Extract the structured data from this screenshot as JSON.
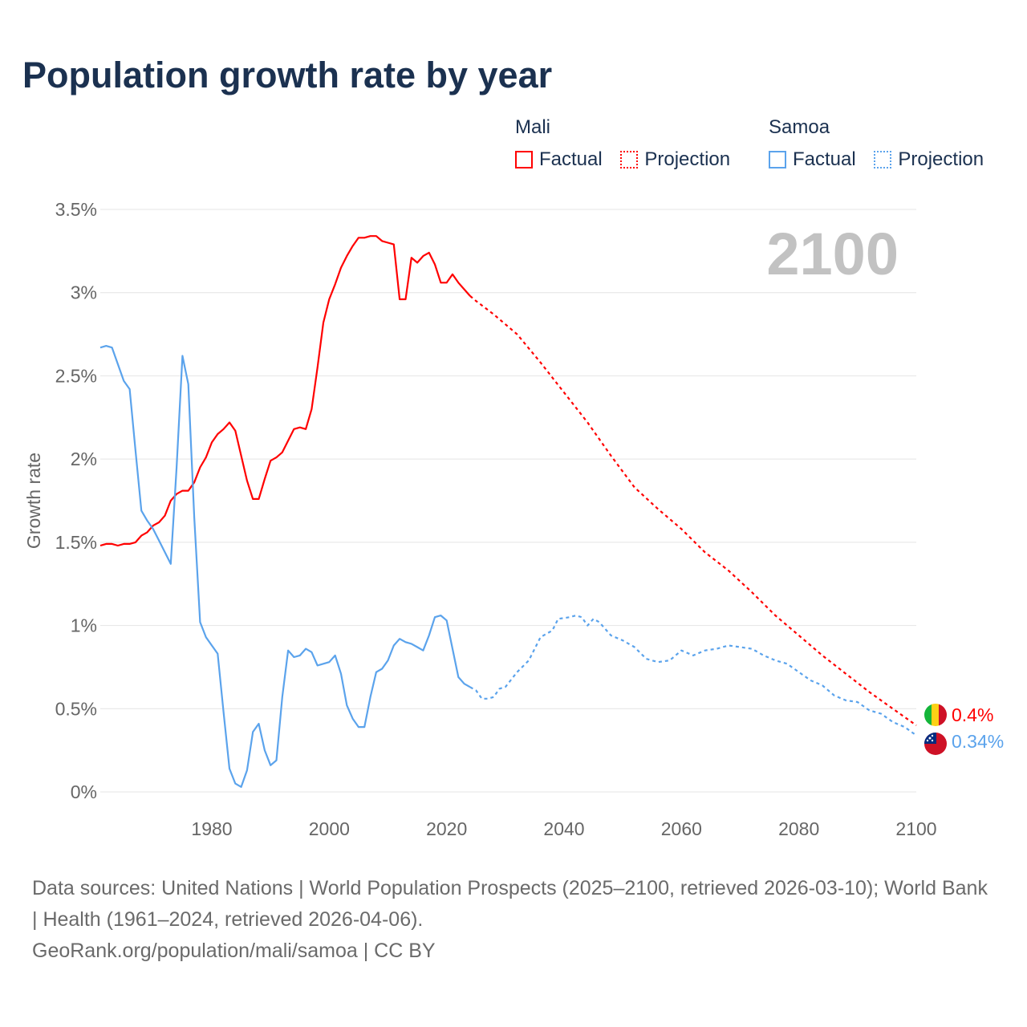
{
  "title": "Population growth rate by year",
  "legend": {
    "groups": [
      {
        "name": "Mali",
        "factual": "Factual",
        "projection": "Projection",
        "color": "#ff0000"
      },
      {
        "name": "Samoa",
        "factual": "Factual",
        "projection": "Projection",
        "color": "#5ba3ec"
      }
    ]
  },
  "year_watermark": "2100",
  "end_labels": {
    "mali": "0.4%",
    "samoa": "0.34%"
  },
  "footer": {
    "sources": "Data sources: United Nations | World Population Prospects (2025–2100, retrieved 2026-03-10); World Bank | Health (1961–2024, retrieved 2026-04-06).",
    "credit": "GeoRank.org/population/mali/samoa | CC BY"
  },
  "chart_data": {
    "type": "line",
    "title": "Population growth rate by year",
    "xlabel": "",
    "ylabel": "Growth rate",
    "xlim": [
      1961,
      2100
    ],
    "ylim": [
      0,
      3.5
    ],
    "xticks": [
      {
        "v": 1980,
        "label": "1980"
      },
      {
        "v": 2000,
        "label": "2000"
      },
      {
        "v": 2020,
        "label": "2020"
      },
      {
        "v": 2040,
        "label": "2040"
      },
      {
        "v": 2060,
        "label": "2060"
      },
      {
        "v": 2080,
        "label": "2080"
      },
      {
        "v": 2100,
        "label": "2100"
      }
    ],
    "yticks": [
      {
        "v": 0,
        "label": "0%"
      },
      {
        "v": 0.5,
        "label": "0.5%"
      },
      {
        "v": 1,
        "label": "1%"
      },
      {
        "v": 1.5,
        "label": "1.5%"
      },
      {
        "v": 2,
        "label": "2%"
      },
      {
        "v": 2.5,
        "label": "2.5%"
      },
      {
        "v": 3,
        "label": "3%"
      },
      {
        "v": 3.5,
        "label": "3.5%"
      }
    ],
    "grid": true,
    "series": [
      {
        "name": "Mali Factual",
        "country": "Mali",
        "kind": "factual",
        "color": "#ff0000",
        "x": [
          1961,
          1962,
          1963,
          1964,
          1965,
          1966,
          1967,
          1968,
          1969,
          1970,
          1971,
          1972,
          1973,
          1974,
          1975,
          1976,
          1977,
          1978,
          1979,
          1980,
          1981,
          1982,
          1983,
          1984,
          1985,
          1986,
          1987,
          1988,
          1989,
          1990,
          1991,
          1992,
          1993,
          1994,
          1995,
          1996,
          1997,
          1998,
          1999,
          2000,
          2001,
          2002,
          2003,
          2004,
          2005,
          2006,
          2007,
          2008,
          2009,
          2010,
          2011,
          2012,
          2013,
          2014,
          2015,
          2016,
          2017,
          2018,
          2019,
          2020,
          2021,
          2022,
          2023,
          2024
        ],
        "y": [
          1.48,
          1.49,
          1.49,
          1.48,
          1.49,
          1.49,
          1.5,
          1.54,
          1.56,
          1.6,
          1.62,
          1.66,
          1.75,
          1.79,
          1.81,
          1.81,
          1.86,
          1.95,
          2.01,
          2.1,
          2.15,
          2.18,
          2.22,
          2.17,
          2.02,
          1.87,
          1.76,
          1.76,
          1.88,
          1.99,
          2.01,
          2.04,
          2.11,
          2.18,
          2.19,
          2.18,
          2.3,
          2.55,
          2.82,
          2.96,
          3.05,
          3.15,
          3.22,
          3.28,
          3.33,
          3.33,
          3.34,
          3.34,
          3.31,
          3.3,
          3.29,
          2.96,
          2.96,
          3.21,
          3.18,
          3.22,
          3.24,
          3.17,
          3.06,
          3.06,
          3.11,
          3.06,
          3.02,
          2.98
        ]
      },
      {
        "name": "Mali Projection",
        "country": "Mali",
        "kind": "projection",
        "color": "#ff0000",
        "x": [
          2024,
          2025,
          2028,
          2032,
          2036,
          2040,
          2044,
          2048,
          2052,
          2056,
          2060,
          2064,
          2068,
          2072,
          2076,
          2080,
          2084,
          2088,
          2092,
          2096,
          2100
        ],
        "y": [
          2.98,
          2.95,
          2.87,
          2.75,
          2.58,
          2.4,
          2.22,
          2.02,
          1.83,
          1.7,
          1.58,
          1.44,
          1.33,
          1.2,
          1.06,
          0.94,
          0.82,
          0.71,
          0.6,
          0.5,
          0.4
        ]
      },
      {
        "name": "Samoa Factual",
        "country": "Samoa",
        "kind": "factual",
        "color": "#5ba3ec",
        "x": [
          1961,
          1962,
          1963,
          1964,
          1965,
          1966,
          1967,
          1968,
          1969,
          1970,
          1971,
          1972,
          1973,
          1974,
          1975,
          1976,
          1977,
          1978,
          1979,
          1980,
          1981,
          1982,
          1983,
          1984,
          1985,
          1986,
          1987,
          1988,
          1989,
          1990,
          1991,
          1992,
          1993,
          1994,
          1995,
          1996,
          1997,
          1998,
          1999,
          2000,
          2001,
          2002,
          2003,
          2004,
          2005,
          2006,
          2007,
          2008,
          2009,
          2010,
          2011,
          2012,
          2013,
          2014,
          2015,
          2016,
          2017,
          2018,
          2019,
          2020,
          2021,
          2022,
          2023,
          2024
        ],
        "y": [
          2.67,
          2.68,
          2.67,
          2.57,
          2.47,
          2.42,
          2.05,
          1.69,
          1.63,
          1.58,
          1.51,
          1.44,
          1.37,
          1.95,
          2.62,
          2.45,
          1.65,
          1.02,
          0.93,
          0.88,
          0.83,
          0.48,
          0.14,
          0.05,
          0.03,
          0.13,
          0.36,
          0.41,
          0.25,
          0.16,
          0.19,
          0.57,
          0.85,
          0.81,
          0.82,
          0.86,
          0.84,
          0.76,
          0.77,
          0.78,
          0.82,
          0.71,
          0.52,
          0.44,
          0.39,
          0.39,
          0.57,
          0.72,
          0.74,
          0.79,
          0.88,
          0.92,
          0.9,
          0.89,
          0.87,
          0.85,
          0.94,
          1.05,
          1.06,
          1.03,
          0.86,
          0.69,
          0.65,
          0.63
        ]
      },
      {
        "name": "Samoa Projection",
        "country": "Samoa",
        "kind": "projection",
        "color": "#5ba3ec",
        "x": [
          2024,
          2025,
          2026,
          2027,
          2028,
          2029,
          2030,
          2032,
          2034,
          2036,
          2038,
          2039,
          2041,
          2042,
          2043,
          2044,
          2045,
          2046,
          2048,
          2050,
          2052,
          2054,
          2056,
          2058,
          2060,
          2062,
          2064,
          2066,
          2068,
          2070,
          2072,
          2074,
          2076,
          2078,
          2080,
          2082,
          2084,
          2086,
          2088,
          2090,
          2092,
          2094,
          2096,
          2098,
          2100
        ],
        "y": [
          0.63,
          0.61,
          0.56,
          0.56,
          0.57,
          0.62,
          0.63,
          0.72,
          0.79,
          0.93,
          0.97,
          1.04,
          1.05,
          1.06,
          1.05,
          1.0,
          1.04,
          1.02,
          0.94,
          0.91,
          0.87,
          0.8,
          0.78,
          0.79,
          0.85,
          0.82,
          0.85,
          0.86,
          0.88,
          0.87,
          0.86,
          0.82,
          0.79,
          0.77,
          0.72,
          0.67,
          0.64,
          0.58,
          0.55,
          0.54,
          0.49,
          0.47,
          0.42,
          0.39,
          0.34
        ]
      }
    ]
  }
}
